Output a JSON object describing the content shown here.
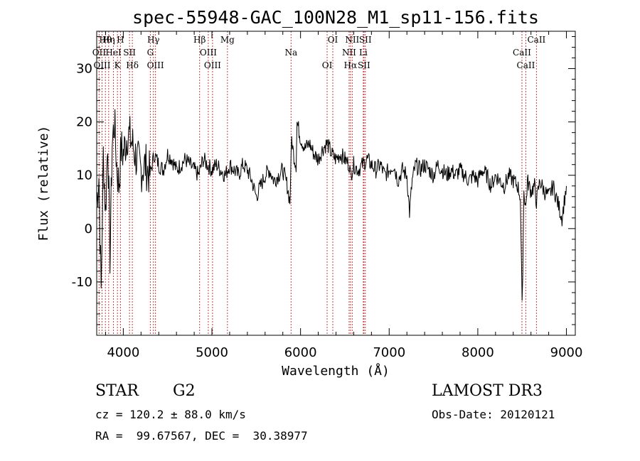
{
  "chart_data": {
    "type": "line",
    "title": "spec-55948-GAC_100N28_M1_sp11-156.fits",
    "xlabel": "Wavelength (Å)",
    "ylabel": "Flux (relative)",
    "xlim": [
      3700,
      9100
    ],
    "ylim": [
      -20,
      37
    ],
    "xticks": [
      4000,
      5000,
      6000,
      7000,
      8000,
      9000
    ],
    "yticks": [
      -10,
      0,
      10,
      20,
      30
    ],
    "series": [
      {
        "name": "flux",
        "x": [
          3700,
          3725,
          3750,
          3775,
          3800,
          3825,
          3850,
          3875,
          3900,
          3925,
          3950,
          3975,
          4000,
          4050,
          4100,
          4150,
          4200,
          4250,
          4300,
          4350,
          4400,
          4450,
          4500,
          4550,
          4600,
          4650,
          4700,
          4750,
          4800,
          4850,
          4900,
          4950,
          5000,
          5050,
          5100,
          5150,
          5200,
          5250,
          5300,
          5350,
          5400,
          5450,
          5500,
          5550,
          5600,
          5650,
          5700,
          5750,
          5800,
          5850,
          5880,
          5900,
          5920,
          5950,
          5960,
          6000,
          6050,
          6100,
          6150,
          6200,
          6250,
          6300,
          6350,
          6400,
          6450,
          6500,
          6550,
          6563,
          6600,
          6650,
          6700,
          6750,
          6800,
          6850,
          6900,
          6950,
          7000,
          7050,
          7100,
          7150,
          7200,
          7230,
          7260,
          7300,
          7350,
          7400,
          7450,
          7500,
          7550,
          7600,
          7650,
          7700,
          7750,
          7800,
          7850,
          7900,
          7950,
          8000,
          8050,
          8100,
          8150,
          8200,
          8250,
          8300,
          8350,
          8400,
          8450,
          8480,
          8500,
          8520,
          8542,
          8560,
          8600,
          8640,
          8662,
          8700,
          8750,
          8800,
          8850,
          8900,
          8950,
          9000
        ],
        "y": [
          5,
          10,
          -12,
          14,
          3,
          17,
          -5,
          16,
          20,
          12,
          8,
          15,
          14,
          18,
          16,
          13,
          11,
          12,
          10,
          14,
          12,
          11,
          14,
          13,
          11,
          12,
          13,
          12,
          11,
          10,
          13,
          12,
          11,
          12,
          11,
          10,
          12,
          11,
          10,
          12,
          11,
          9,
          6,
          8,
          10,
          11,
          9,
          10,
          11,
          8,
          5,
          17,
          14,
          12,
          20,
          17,
          15,
          16,
          14,
          13,
          15,
          16,
          14,
          13,
          14,
          13,
          12,
          10,
          12,
          11,
          12,
          13,
          12,
          11,
          12,
          10,
          11,
          12,
          9,
          11,
          10,
          3,
          9,
          12,
          11,
          12,
          11,
          10,
          12,
          11,
          10,
          11,
          10,
          11,
          10,
          9,
          10,
          9,
          11,
          10,
          8,
          10,
          9,
          8,
          10,
          9,
          8,
          6,
          -15,
          7,
          4,
          9,
          7,
          8,
          5,
          9,
          7,
          6,
          8,
          5,
          2,
          8
        ]
      }
    ],
    "line_markers": [
      {
        "label": "Hθ",
        "wl": 3798
      },
      {
        "label": "OII",
        "wl": 3727
      },
      {
        "label": "OIII",
        "wl": 3760
      },
      {
        "label": "Hη",
        "wl": 3835
      },
      {
        "label": "HeI",
        "wl": 3889
      },
      {
        "label": "K",
        "wl": 3934
      },
      {
        "label": "H",
        "wl": 3968
      },
      {
        "label": "SII",
        "wl": 4070
      },
      {
        "label": "Hδ",
        "wl": 4102
      },
      {
        "label": "Hγ",
        "wl": 4340
      },
      {
        "label": "G",
        "wl": 4305
      },
      {
        "label": "OIII",
        "wl": 4363
      },
      {
        "label": "Hβ",
        "wl": 4861
      },
      {
        "label": "OIII",
        "wl": 4959
      },
      {
        "label": "OIII",
        "wl": 5007
      },
      {
        "label": "Mg",
        "wl": 5175
      },
      {
        "label": "Na",
        "wl": 5893
      },
      {
        "label": "OI",
        "wl": 6300
      },
      {
        "label": "OI",
        "wl": 6364
      },
      {
        "label": "NII",
        "wl": 6548
      },
      {
        "label": "Hα",
        "wl": 6563
      },
      {
        "label": "NII",
        "wl": 6583
      },
      {
        "label": "Li",
        "wl": 6708
      },
      {
        "label": "SII",
        "wl": 6716
      },
      {
        "label": "SII",
        "wl": 6731
      },
      {
        "label": "CaII",
        "wl": 8498
      },
      {
        "label": "CaII",
        "wl": 8542
      },
      {
        "label": "CaII",
        "wl": 8662
      }
    ]
  },
  "info": {
    "object_type": "STAR",
    "subclass": "G2",
    "survey": "LAMOST DR3",
    "cz": "cz = 120.2 ± 88.0 km/s",
    "obs_date": "Obs-Date: 20120121",
    "coords": "RA =  99.67567, DEC =  30.38977"
  }
}
